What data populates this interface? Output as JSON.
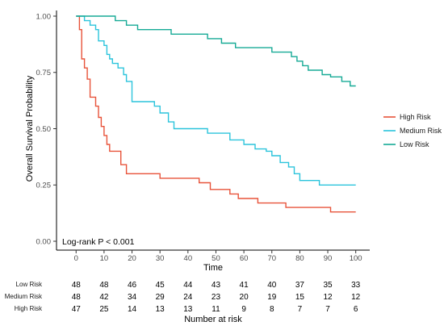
{
  "chart_data": {
    "type": "line",
    "subtype": "kaplan-meier",
    "xlabel": "Time",
    "ylabel": "Overall Survival Probability",
    "xlim": [
      -7,
      105
    ],
    "ylim": [
      0,
      1
    ],
    "x_ticks": [
      0,
      10,
      20,
      30,
      40,
      50,
      60,
      70,
      80,
      90,
      100
    ],
    "y_ticks": [
      "0.00",
      "0.25",
      "0.50",
      "0.75",
      "1.00"
    ],
    "y_tick_values": [
      0,
      0.25,
      0.5,
      0.75,
      1.0
    ],
    "grid": false,
    "legend_position": "right",
    "annotation": "Log-rank P < 0.001",
    "series": [
      {
        "name": "High Risk",
        "color": "#e8533a",
        "steps": [
          [
            0,
            1.0
          ],
          [
            1.2,
            0.94
          ],
          [
            2.0,
            0.81
          ],
          [
            3.0,
            0.77
          ],
          [
            4.0,
            0.72
          ],
          [
            5.0,
            0.64
          ],
          [
            7.0,
            0.6
          ],
          [
            8.0,
            0.55
          ],
          [
            9.0,
            0.51
          ],
          [
            10.0,
            0.47
          ],
          [
            11.0,
            0.43
          ],
          [
            12.0,
            0.4
          ],
          [
            16.0,
            0.34
          ],
          [
            18.0,
            0.3
          ],
          [
            30.0,
            0.28
          ],
          [
            44.0,
            0.26
          ],
          [
            48.0,
            0.23
          ],
          [
            55.0,
            0.21
          ],
          [
            58.0,
            0.19
          ],
          [
            65.0,
            0.17
          ],
          [
            75.0,
            0.15
          ],
          [
            91.0,
            0.13
          ],
          [
            100.0,
            0.13
          ]
        ]
      },
      {
        "name": "Medium Risk",
        "color": "#2bc4dc",
        "steps": [
          [
            0,
            1.0
          ],
          [
            3.0,
            0.98
          ],
          [
            5.0,
            0.96
          ],
          [
            7.0,
            0.94
          ],
          [
            8.0,
            0.89
          ],
          [
            10.0,
            0.87
          ],
          [
            11.0,
            0.83
          ],
          [
            12.0,
            0.81
          ],
          [
            13.0,
            0.79
          ],
          [
            15.0,
            0.77
          ],
          [
            17.0,
            0.74
          ],
          [
            18.0,
            0.71
          ],
          [
            20.0,
            0.62
          ],
          [
            28.0,
            0.6
          ],
          [
            30.0,
            0.57
          ],
          [
            33.0,
            0.53
          ],
          [
            35.0,
            0.5
          ],
          [
            47.0,
            0.48
          ],
          [
            55.0,
            0.45
          ],
          [
            60.0,
            0.43
          ],
          [
            64.0,
            0.41
          ],
          [
            68.0,
            0.4
          ],
          [
            70.0,
            0.38
          ],
          [
            73.0,
            0.35
          ],
          [
            76.0,
            0.33
          ],
          [
            78.0,
            0.3
          ],
          [
            80.0,
            0.27
          ],
          [
            87.0,
            0.25
          ],
          [
            100.0,
            0.25
          ]
        ]
      },
      {
        "name": "Low Risk",
        "color": "#16aa96",
        "steps": [
          [
            0,
            1.0
          ],
          [
            14.0,
            0.98
          ],
          [
            18.0,
            0.96
          ],
          [
            22.0,
            0.94
          ],
          [
            34.0,
            0.92
          ],
          [
            47.0,
            0.9
          ],
          [
            52.0,
            0.88
          ],
          [
            57.0,
            0.86
          ],
          [
            70.0,
            0.84
          ],
          [
            77.0,
            0.82
          ],
          [
            79.0,
            0.8
          ],
          [
            81.0,
            0.78
          ],
          [
            83.0,
            0.76
          ],
          [
            88.0,
            0.74
          ],
          [
            91.0,
            0.73
          ],
          [
            95.0,
            0.71
          ],
          [
            98.0,
            0.69
          ],
          [
            100.0,
            0.69
          ]
        ]
      }
    ],
    "risk_table": {
      "title": "Number at risk",
      "times": [
        0,
        10,
        20,
        30,
        40,
        50,
        60,
        70,
        80,
        90,
        100
      ],
      "rows": [
        {
          "name": "Low Risk",
          "counts": [
            48,
            48,
            46,
            45,
            44,
            43,
            41,
            40,
            37,
            35,
            33
          ]
        },
        {
          "name": "Medium Risk",
          "counts": [
            48,
            42,
            34,
            29,
            24,
            23,
            20,
            19,
            15,
            12,
            12
          ]
        },
        {
          "name": "High Risk",
          "counts": [
            47,
            25,
            14,
            13,
            13,
            11,
            9,
            8,
            7,
            7,
            6
          ]
        }
      ]
    }
  }
}
